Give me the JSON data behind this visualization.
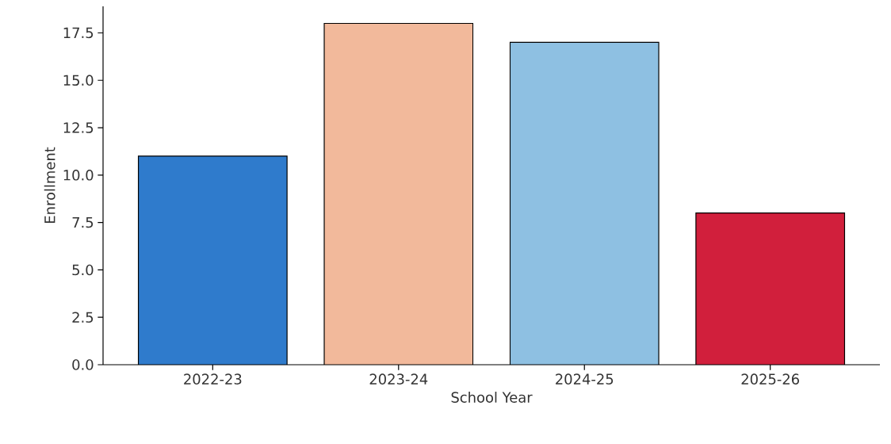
{
  "chart_data": {
    "type": "bar",
    "xlabel": "School Year",
    "ylabel": "Enrollment",
    "categories": [
      "2022-23",
      "2023-24",
      "2024-25",
      "2025-26"
    ],
    "values": [
      11,
      18,
      17,
      8
    ],
    "colors": [
      "#2f7bcc",
      "#f2b99b",
      "#8ec0e2",
      "#d11f3c"
    ],
    "ylim": [
      0,
      18.9
    ],
    "yticks": [
      {
        "value": 0,
        "label": "0.0"
      },
      2.5,
      {
        "value": 5,
        "label": "5.0"
      },
      7.5,
      {
        "value": 10,
        "label": "10.0"
      },
      12.5,
      {
        "value": 15,
        "label": "15.0"
      },
      17.5
    ]
  }
}
